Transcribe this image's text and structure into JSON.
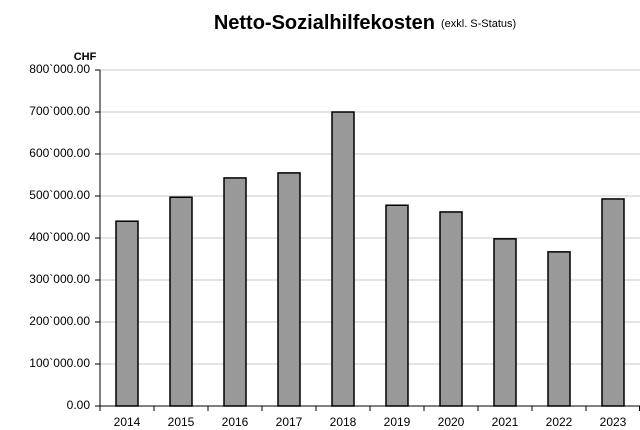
{
  "chart_data": {
    "type": "bar",
    "title": "Netto-Sozialhilfekosten",
    "subtitle": "(exkl. S-Status)",
    "y_label": "CHF",
    "categories": [
      "2014",
      "2015",
      "2016",
      "2017",
      "2018",
      "2019",
      "2020",
      "2021",
      "2022",
      "2023"
    ],
    "values": [
      440000,
      497000,
      543000,
      555000,
      700000,
      478000,
      462000,
      398000,
      367000,
      493000
    ],
    "color": "#999999",
    "ylim": [
      0,
      800000
    ],
    "yticks": [
      {
        "value": 0,
        "label": "0.00"
      },
      {
        "value": 100000,
        "label": "100`000.00"
      },
      {
        "value": 200000,
        "label": "200`000.00"
      },
      {
        "value": 300000,
        "label": "300`000.00"
      },
      {
        "value": 400000,
        "label": "400`000.00"
      },
      {
        "value": 500000,
        "label": "500`000.00"
      },
      {
        "value": 600000,
        "label": "600`000.00"
      },
      {
        "value": 700000,
        "label": "700`000.00"
      },
      {
        "value": 800000,
        "label": "800`000.00"
      }
    ],
    "grid": true
  }
}
